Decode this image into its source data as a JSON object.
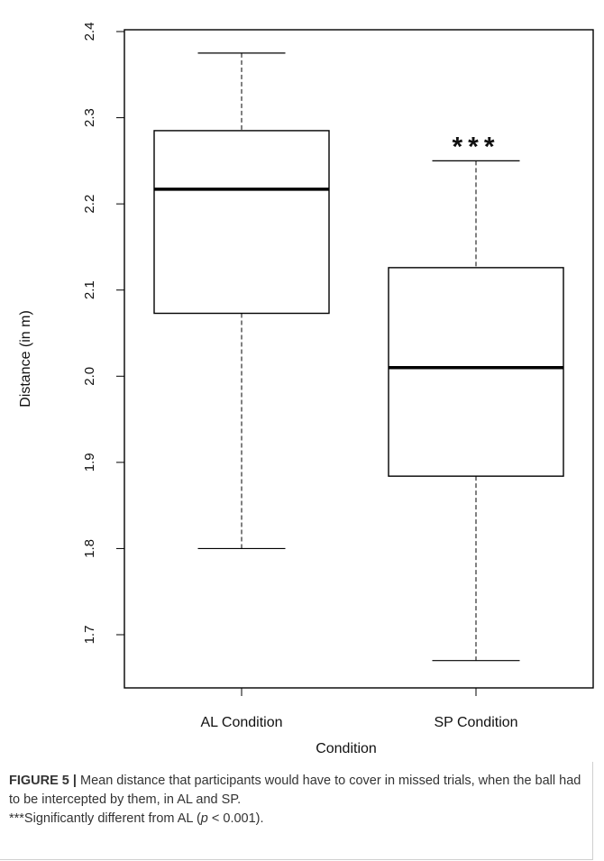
{
  "chart_data": {
    "type": "boxplot",
    "title": "",
    "xlabel": "Condition",
    "ylabel": "Distance (in m)",
    "ylim": [
      1.64,
      2.4
    ],
    "yticks": [
      "1.7",
      "1.8",
      "1.9",
      "2.0",
      "2.1",
      "2.2",
      "2.3",
      "2.4"
    ],
    "categories": [
      "AL Condition",
      "SP Condition"
    ],
    "boxes": [
      {
        "category": "AL Condition",
        "whisker_low": 1.8,
        "q1": 2.073,
        "median": 2.217,
        "q3": 2.285,
        "whisker_high": 2.375,
        "annotation": ""
      },
      {
        "category": "SP Condition",
        "whisker_low": 1.67,
        "q1": 1.884,
        "median": 2.01,
        "q3": 2.126,
        "whisker_high": 2.25,
        "annotation": "***"
      }
    ],
    "grid": false
  },
  "caption": {
    "label": "FIGURE 5 |",
    "text": "Mean distance that participants would have to cover in missed trials, when the ball had to be intercepted by them, in AL and SP.",
    "note_prefix": "***Significantly different from AL (",
    "note_p": "p",
    "note_suffix": " < 0.001)."
  }
}
